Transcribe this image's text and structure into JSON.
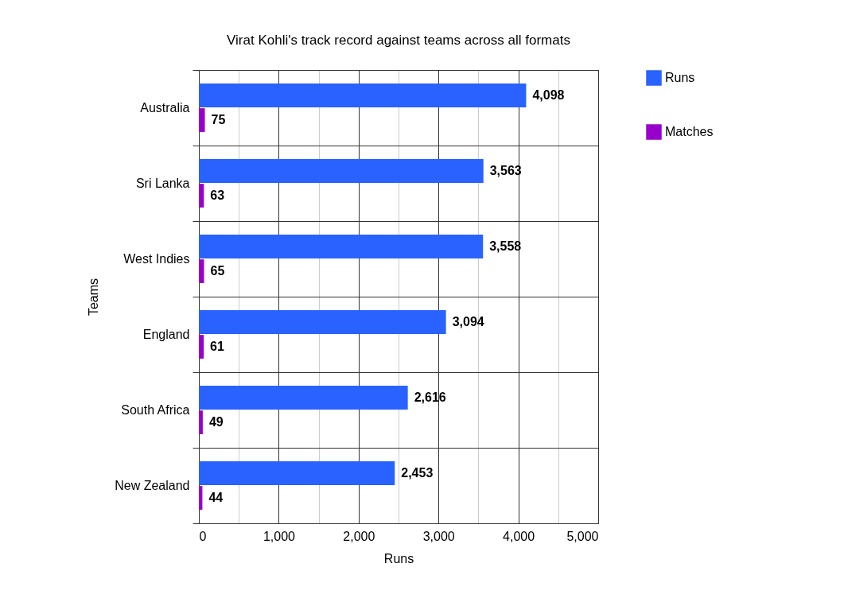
{
  "chart_data": {
    "type": "bar",
    "orientation": "horizontal",
    "title": "Virat Kohli's track record against teams across all formats",
    "xlabel": "Runs",
    "ylabel": "Teams",
    "categories": [
      "Australia",
      "Sri Lanka",
      "West Indies",
      "England",
      "South Africa",
      "New Zealand"
    ],
    "series": [
      {
        "name": "Runs",
        "color": "#2962ff",
        "values": [
          4098,
          3563,
          3558,
          3094,
          2616,
          2453
        ],
        "value_labels": [
          "4,098",
          "3,563",
          "3,558",
          "3,094",
          "2,616",
          "2,453"
        ]
      },
      {
        "name": "Matches",
        "color": "#9900cc",
        "values": [
          75,
          63,
          65,
          61,
          49,
          44
        ]
      }
    ],
    "data_labels": true,
    "xlim": [
      0,
      5000
    ],
    "xticks": [
      0,
      {
        "value": 500,
        "label": null
      },
      "1,000",
      {
        "value": 1500,
        "label": null
      },
      {
        "value": 2000,
        "label": "2,000"
      },
      {
        "value": 2500,
        "label": null
      },
      {
        "value": 3000,
        "label": "3,000"
      },
      {
        "value": 3500,
        "label": null
      },
      {
        "value": 4000,
        "label": "4,000"
      },
      {
        "value": 4500,
        "label": null
      },
      {
        "value": 5000,
        "label": "5,000"
      }
    ],
    "grid": true,
    "legend": "right"
  }
}
